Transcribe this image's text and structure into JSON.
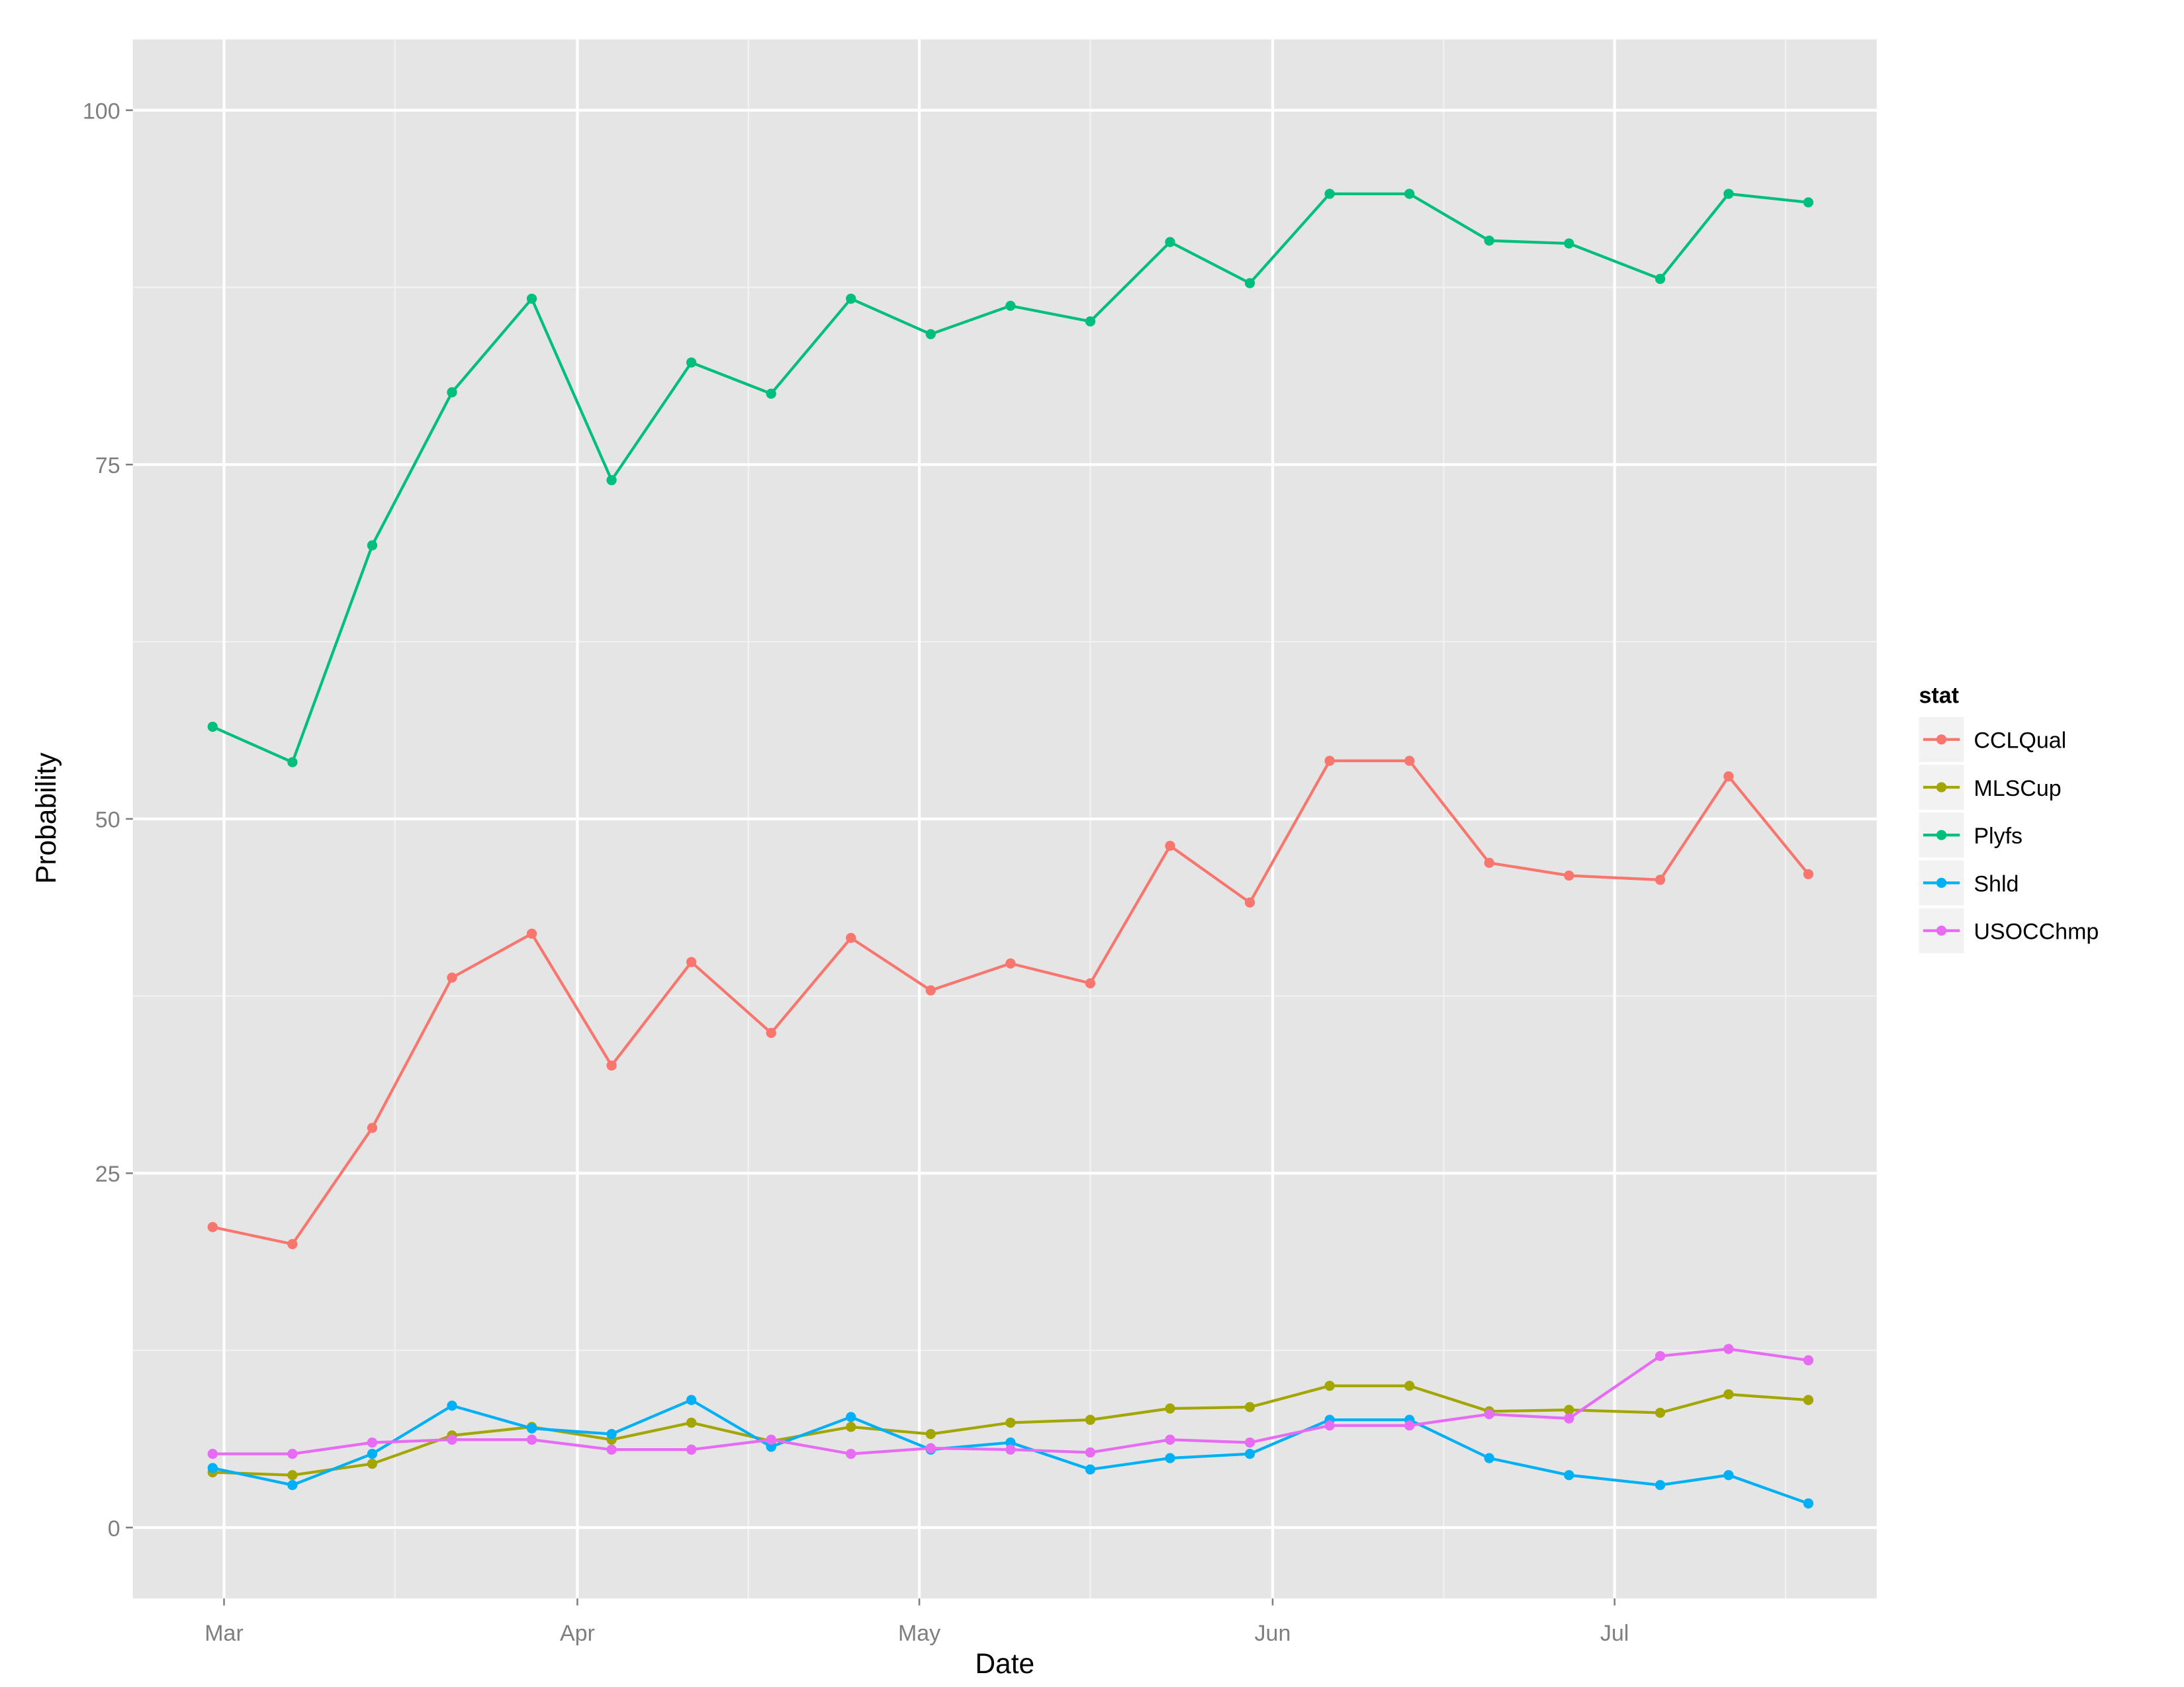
{
  "chart_data": {
    "type": "line",
    "xlabel": "Date",
    "ylabel": "Probability",
    "x_ticks": [
      {
        "label": "Mar",
        "date": "2015-03-01"
      },
      {
        "label": "Apr",
        "date": "2015-04-01"
      },
      {
        "label": "May",
        "date": "2015-05-01"
      },
      {
        "label": "Jun",
        "date": "2015-06-01"
      },
      {
        "label": "Jul",
        "date": "2015-07-01"
      }
    ],
    "x_range": [
      "2015-02-21",
      "2015-07-24"
    ],
    "y_ticks": [
      0,
      25,
      50,
      75,
      100
    ],
    "ylim": [
      -5,
      105
    ],
    "grid": true,
    "legend": {
      "title": "stat",
      "placement": "right"
    },
    "x": [
      "2015-02-28",
      "2015-03-07",
      "2015-03-14",
      "2015-03-21",
      "2015-03-28",
      "2015-04-04",
      "2015-04-11",
      "2015-04-18",
      "2015-04-25",
      "2015-05-02",
      "2015-05-09",
      "2015-05-16",
      "2015-05-23",
      "2015-05-30",
      "2015-06-06",
      "2015-06-13",
      "2015-06-20",
      "2015-06-27",
      "2015-07-05",
      "2015-07-11",
      "2015-07-18"
    ],
    "series": [
      {
        "name": "CCLQual",
        "color": "#F8766D",
        "values": [
          21.2,
          20.0,
          28.2,
          38.8,
          41.9,
          32.6,
          39.9,
          34.9,
          41.6,
          37.9,
          39.8,
          38.4,
          48.1,
          44.1,
          54.1,
          54.1,
          46.9,
          46.0,
          45.7,
          53.0,
          46.1
        ]
      },
      {
        "name": "MLSCup",
        "color": "#A3A500",
        "values": [
          3.9,
          3.7,
          4.5,
          6.5,
          7.1,
          6.2,
          7.4,
          6.1,
          7.1,
          6.6,
          7.4,
          7.6,
          8.4,
          8.5,
          10.0,
          10.0,
          8.2,
          8.3,
          8.1,
          9.4,
          9.0
        ]
      },
      {
        "name": "Plyfs",
        "color": "#00BF7D",
        "values": [
          56.5,
          54.0,
          69.3,
          80.1,
          86.7,
          73.9,
          82.2,
          80.0,
          86.7,
          84.2,
          86.2,
          85.1,
          90.7,
          87.8,
          94.1,
          94.1,
          90.8,
          90.6,
          88.1,
          94.1,
          93.5
        ]
      },
      {
        "name": "Shld",
        "color": "#00B0F6",
        "values": [
          4.2,
          3.0,
          5.2,
          8.6,
          7.0,
          6.6,
          9.0,
          5.7,
          7.8,
          5.5,
          6.0,
          4.1,
          4.9,
          5.2,
          7.6,
          7.6,
          4.9,
          3.7,
          3.0,
          3.7,
          1.7
        ]
      },
      {
        "name": "USOCChmp",
        "color": "#E76BF3",
        "values": [
          5.2,
          5.2,
          6.0,
          6.2,
          6.2,
          5.5,
          5.5,
          6.2,
          5.2,
          5.6,
          5.5,
          5.3,
          6.2,
          6.0,
          7.2,
          7.2,
          8.0,
          7.7,
          12.1,
          12.6,
          11.8
        ]
      }
    ]
  }
}
